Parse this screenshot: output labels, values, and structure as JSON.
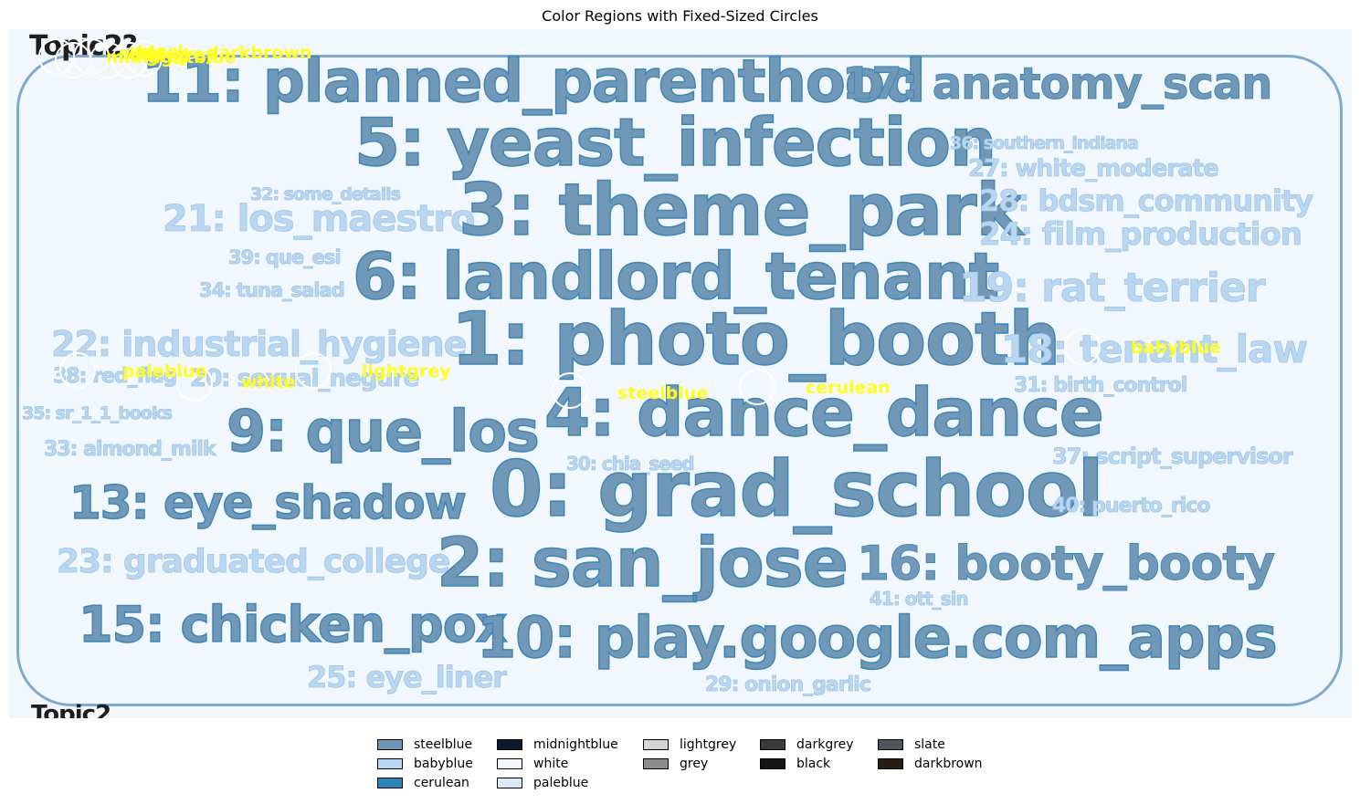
{
  "title": "Color Regions with Fixed-Sized Circles",
  "wordcloud": {
    "corner_top": "Topic2?",
    "corner_bottom": "Topic2",
    "topics": [
      "11: planned_parenthood",
      "17: anatomy_scan",
      "5: yeast_infection",
      "36: southern_indiana",
      "27: white_moderate",
      "32: some_details",
      "21: los_maestro",
      "3: theme_park",
      "28: bdsm_community",
      "24: film_production",
      "39: que_esi",
      "6: landlord_tenant",
      "19: rat_terrier",
      "34: tuna_salad",
      "22: industrial_hygiene",
      "1: photo_booth",
      "18: tenant_law",
      "38: red_flag",
      "20: sexual_negure",
      "31: birth_control",
      "4: dance_dance",
      "35: sr_1_1_books",
      "9: que_los",
      "33: almond_milk",
      "30: chia_seed",
      "37: script_supervisor",
      "13: eye_shadow",
      "0: grad_school",
      "40: puerto_rico",
      "23: graduated_college",
      "2: san_jose",
      "16: booty_booty",
      "41: ott_sin",
      "15: chicken_pox",
      "10: play.google.com_apps",
      "25: eye_liner",
      "29: onion_garlic"
    ]
  },
  "markers": [
    {
      "label": "darkbrown"
    },
    {
      "label": "slate"
    },
    {
      "label": "darkgrey"
    },
    {
      "label": "midnightblue"
    },
    {
      "label": "black"
    },
    {
      "label": "grey"
    },
    {
      "label": "paleblue"
    },
    {
      "label": "white"
    },
    {
      "label": "lightgrey"
    },
    {
      "label": "steelblue"
    },
    {
      "label": "cerulean"
    },
    {
      "label": "babyblue"
    }
  ],
  "legend": [
    {
      "label": "steelblue",
      "color": "#7396b7"
    },
    {
      "label": "babyblue",
      "color": "#b8d6f1"
    },
    {
      "label": "cerulean",
      "color": "#2a86b8"
    },
    {
      "label": "midnightblue",
      "color": "#0d1b2e"
    },
    {
      "label": "white",
      "color": "#f4f8fc"
    },
    {
      "label": "paleblue",
      "color": "#dbeaf6"
    },
    {
      "label": "lightgrey",
      "color": "#d4d4d4"
    },
    {
      "label": "grey",
      "color": "#8c8c8c"
    },
    {
      "label": "darkgrey",
      "color": "#3a3a3a"
    },
    {
      "label": "black",
      "color": "#141414"
    },
    {
      "label": "slate",
      "color": "#4b5660"
    },
    {
      "label": "darkbrown",
      "color": "#2a1c14"
    }
  ]
}
